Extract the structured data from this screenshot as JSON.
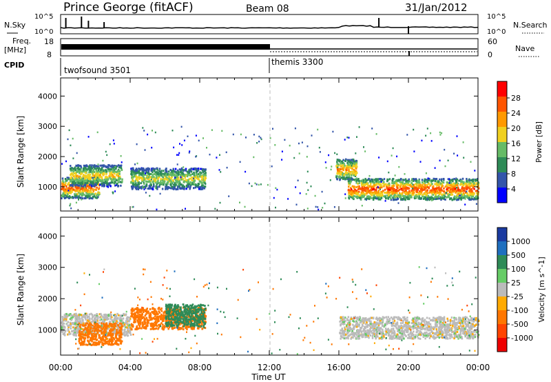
{
  "header": {
    "station": "Prince George (fitACF)",
    "beam": "Beam 08",
    "date": "31/Jan/2012"
  },
  "noise_panel": {
    "left_label": "N.Sky",
    "right_label": "N.Search",
    "left_ticks": [
      "10^5",
      "10^0"
    ],
    "right_ticks": [
      "10^5",
      "10^0"
    ]
  },
  "freq_panel": {
    "left_label_1": "Freq.",
    "left_label_2": "[MHz]",
    "left_ticks": [
      "18",
      "8"
    ],
    "right_label": "Nave",
    "right_ticks": [
      "60",
      "0"
    ]
  },
  "cpid_panel": {
    "label": "CPID",
    "programs": [
      {
        "name": "twofsound 3501",
        "start_hour": 0
      },
      {
        "name": "themis 3300",
        "start_hour": 12
      }
    ]
  },
  "time_axis": {
    "label": "Time UT",
    "ticks": [
      "00:00",
      "04:00",
      "08:00",
      "12:00",
      "16:00",
      "20:00",
      "00:00"
    ]
  },
  "colors": {
    "power": [
      "#0000ff",
      "#3355aa",
      "#2e8b57",
      "#66bb66",
      "#f0d020",
      "#ff9900",
      "#ff5500",
      "#ff0000"
    ],
    "velocity": [
      "#1a3aa0",
      "#1f6fbf",
      "#2e8b57",
      "#66cc66",
      "#bbbbbb",
      "#ffaa00",
      "#ff7700",
      "#ff4400",
      "#ee0000"
    ],
    "grey": "#bbbbbb"
  },
  "chart_data": [
    {
      "type": "heatmap",
      "title": "Power",
      "xlabel": "Time UT",
      "ylabel": "Slant Range [km]",
      "xlim": [
        0,
        24
      ],
      "ylim": [
        200,
        4600
      ],
      "yticks": [
        1000,
        2000,
        3000,
        4000
      ],
      "colorbar": {
        "label": "Power [dB]",
        "ticks": [
          "28",
          "24",
          "20",
          "16",
          "12",
          "8",
          "4"
        ],
        "ramp": [
          0,
          3,
          6,
          9,
          12,
          15,
          18,
          21,
          24,
          27,
          30
        ]
      },
      "scatter_bands": [
        {
          "t_start": 0.0,
          "t_end": 2.2,
          "range_center": 1000,
          "value": 26
        },
        {
          "t_start": 0.5,
          "t_end": 3.5,
          "range_center": 1400,
          "value": 20
        },
        {
          "t_start": 4.0,
          "t_end": 8.3,
          "range_center": 1300,
          "value": 18
        },
        {
          "t_start": 15.8,
          "t_end": 17.0,
          "range_center": 1600,
          "value": 24
        },
        {
          "t_start": 16.5,
          "t_end": 24.0,
          "range_center": 950,
          "value": 28
        }
      ]
    },
    {
      "type": "heatmap",
      "title": "Velocity",
      "xlabel": "Time UT",
      "ylabel": "Slant Range [km]",
      "xlim": [
        0,
        24
      ],
      "ylim": [
        200,
        4600
      ],
      "yticks": [
        1000,
        2000,
        3000,
        4000
      ],
      "colorbar": {
        "label": "Velocity [m s^-1]",
        "ticks": [
          "1000",
          "500",
          "100",
          "25",
          "-25",
          "-100",
          "-500",
          "-1000"
        ]
      },
      "scatter_bands": [
        {
          "t_start": 0.0,
          "t_end": 4.0,
          "range_center": 1200,
          "value": 0
        },
        {
          "t_start": 1.0,
          "t_end": 3.5,
          "range_center": 900,
          "value": -300
        },
        {
          "t_start": 4.0,
          "t_end": 8.3,
          "range_center": 1400,
          "value": -200
        },
        {
          "t_start": 6.0,
          "t_end": 8.3,
          "range_center": 1500,
          "value": 150
        },
        {
          "t_start": 16.0,
          "t_end": 24.0,
          "range_center": 1100,
          "value": 0
        }
      ]
    }
  ]
}
